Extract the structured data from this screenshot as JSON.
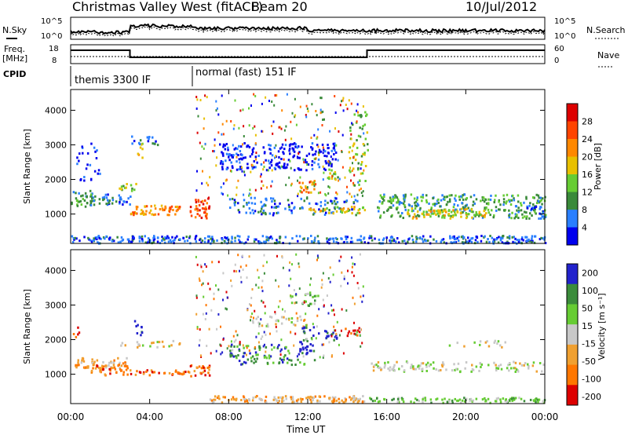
{
  "header": {
    "title": "Christmas Valley West (fitACF)",
    "beam": "Beam 20",
    "date": "10/Jul/2012"
  },
  "noise_panel": {
    "left_label": "N.Sky",
    "right_label": "N.Search",
    "y_ticks_left": [
      "10^5",
      "10^0"
    ],
    "y_ticks_right": [
      "10^5",
      "10^0"
    ]
  },
  "freq_panel": {
    "left_label_1": "Freq.",
    "left_label_2": "[MHz]",
    "right_label": "Nave",
    "left_ticks": [
      "18",
      "8"
    ],
    "right_ticks": [
      "60",
      "0"
    ]
  },
  "cpid": {
    "label": "CPID",
    "segments": [
      "themis 3300 IF",
      "normal (fast) 151 IF"
    ]
  },
  "x_axis": {
    "ticks": [
      "00:00",
      "04:00",
      "08:00",
      "12:00",
      "16:00",
      "20:00",
      "00:00"
    ],
    "label": "Time UT"
  },
  "colors": {
    "power": [
      "#0000ee",
      "#2a7fff",
      "#3a8a3a",
      "#66cc33",
      "#e8c000",
      "#ff8800",
      "#ff4400",
      "#dd0000"
    ],
    "velocity": [
      "#2222cc",
      "#3b8c3b",
      "#66cc33",
      "#c8c8c8",
      "#f0a030",
      "#ff7700",
      "#dd0000"
    ]
  },
  "chart_data": [
    {
      "type": "heatmap",
      "name": "power",
      "ylabel": "Slant Range [km]",
      "y_ticks": [
        "1000",
        "2000",
        "3000",
        "4000"
      ],
      "ylim": [
        150,
        4600
      ],
      "xlim_hours": [
        0,
        24
      ],
      "colorbar_label": "Power [dB]",
      "colorbar_ticks": [
        "4",
        "8",
        "12",
        "16",
        "20",
        "24",
        "28"
      ],
      "colorbar_range": [
        0,
        32
      ]
    },
    {
      "type": "heatmap",
      "name": "velocity",
      "ylabel": "Slant Range [km]",
      "y_ticks": [
        "1000",
        "2000",
        "3000",
        "4000"
      ],
      "ylim": [
        150,
        4600
      ],
      "xlim_hours": [
        0,
        24
      ],
      "colorbar_label": "Velocity [m s⁻¹]",
      "colorbar_ticks": [
        "200",
        "100",
        "50",
        "15",
        "-15",
        "-50",
        "-100",
        "-200"
      ]
    }
  ]
}
